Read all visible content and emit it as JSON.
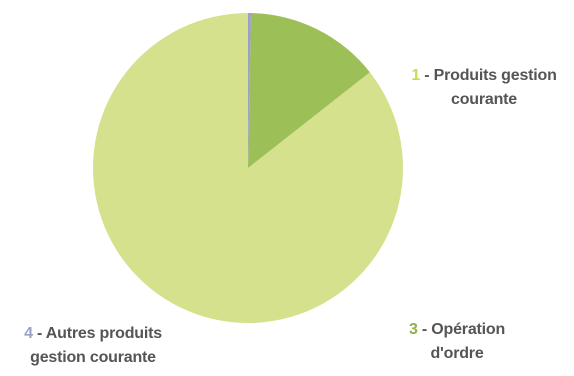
{
  "chart_data": {
    "type": "pie",
    "slices": [
      {
        "index": "1",
        "name": "Produits gestion courante",
        "value": 85.6,
        "color": "#d6e18d"
      },
      {
        "index": "3",
        "name": "Opération d'ordre",
        "value": 14.1,
        "color": "#9dbf58"
      },
      {
        "index": "4",
        "name": "Autres produits gestion courante",
        "value": 0.3,
        "color": "#9c9fc6"
      }
    ],
    "start_angle_deg": 90,
    "direction": "counterclockwise"
  },
  "labels": {
    "slice1": {
      "num": "1",
      "sep": " - ",
      "text_line1": "Produits gestion",
      "text_line2": "courante",
      "num_color": "#c6db59"
    },
    "slice3": {
      "num": "3",
      "sep": " - ",
      "text_line1": "Opération",
      "text_line2": "d'ordre",
      "num_color": "#8fb04a"
    },
    "slice4": {
      "num": "4",
      "sep": " - ",
      "text_line1": "Autres produits",
      "text_line2": "gestion courante",
      "num_color": "#9c9fc6"
    }
  }
}
